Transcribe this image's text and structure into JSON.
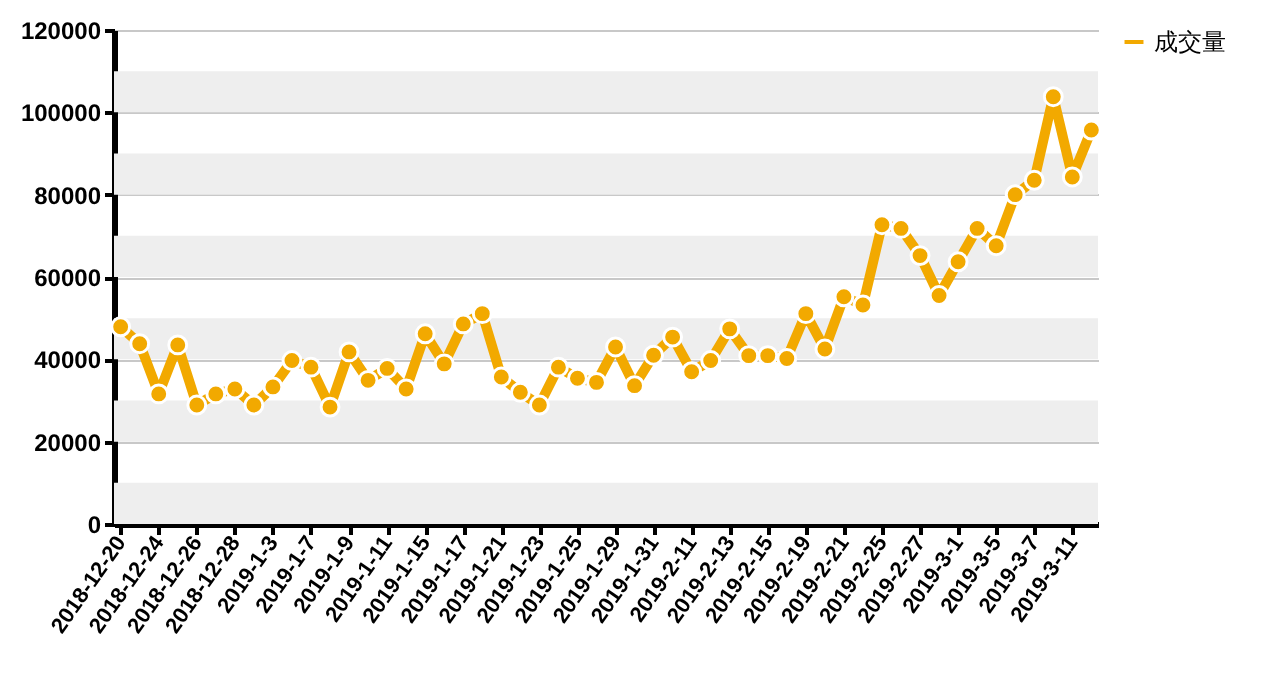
{
  "chart_data": {
    "type": "line",
    "categories": [
      "2018-12-20",
      null,
      "2018-12-24",
      null,
      "2018-12-26",
      null,
      "2018-12-28",
      null,
      "2019-1-3",
      null,
      "2019-1-7",
      null,
      "2019-1-9",
      null,
      "2019-1-11",
      null,
      "2019-1-15",
      null,
      "2019-1-17",
      null,
      "2019-1-21",
      null,
      "2019-1-23",
      null,
      "2019-1-25",
      null,
      "2019-1-29",
      null,
      "2019-1-31",
      null,
      "2019-2-11",
      null,
      "2019-2-13",
      null,
      "2019-2-15",
      null,
      "2019-2-19",
      null,
      "2019-2-21",
      null,
      "2019-2-25",
      null,
      "2019-2-27",
      null,
      "2019-3-1",
      null,
      "2019-3-5",
      null,
      "2019-3-7",
      null,
      "2019-3-11",
      null
    ],
    "series": [
      {
        "name": "成交量",
        "color": "#f2a900",
        "values": [
          47900,
          43800,
          31600,
          43500,
          28900,
          31600,
          32800,
          28900,
          33300,
          39700,
          38100,
          28400,
          41800,
          34900,
          37800,
          32800,
          46200,
          38900,
          48600,
          51100,
          35700,
          32000,
          28900,
          38100,
          35400,
          34400,
          43000,
          33600,
          41000,
          45400,
          37000,
          39700,
          47400,
          40900,
          40900,
          40200,
          51100,
          42500,
          55200,
          53200,
          72700,
          71800,
          65200,
          55500,
          63700,
          71800,
          67600,
          80000,
          83500,
          103800,
          84300,
          95700
        ]
      }
    ],
    "ylim": [
      0,
      120000
    ],
    "yticks": [
      0,
      20000,
      40000,
      60000,
      80000,
      100000,
      120000
    ],
    "grid": "y",
    "legend": "right",
    "marker": "circle",
    "line_style": "solid",
    "bands": [
      {
        "axis": "y",
        "from": 0,
        "to": 10000,
        "color": "#eeeeee"
      },
      {
        "axis": "y",
        "from": 20000,
        "to": 30000,
        "color": "#eeeeee"
      },
      {
        "axis": "y",
        "from": 40000,
        "to": 50000,
        "color": "#eeeeee"
      },
      {
        "axis": "y",
        "from": 60000,
        "to": 70000,
        "color": "#eeeeee"
      },
      {
        "axis": "y",
        "from": 80000,
        "to": 90000,
        "color": "#eeeeee"
      },
      {
        "axis": "y",
        "from": 100000,
        "to": 110000,
        "color": "#eeeeee"
      }
    ]
  }
}
